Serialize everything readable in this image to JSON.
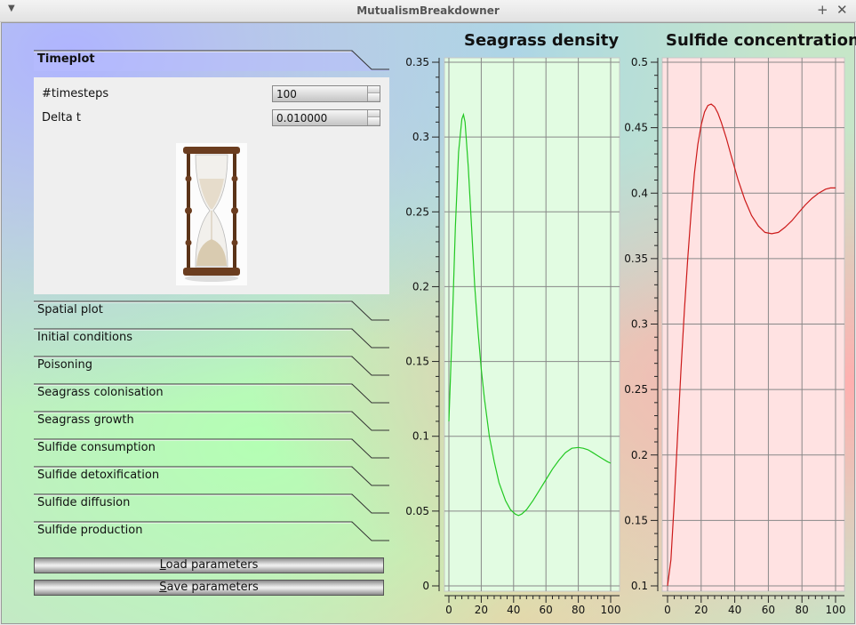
{
  "window": {
    "title": "MutualismBreakdowner"
  },
  "toolbox": {
    "active": {
      "label": "Timeplot"
    },
    "timeplot": {
      "timesteps_label": "#timesteps",
      "timesteps_value": "100",
      "delta_label": "Delta t",
      "delta_value": "0.010000",
      "image": "hourglass-image"
    },
    "sections": [
      {
        "label": "Spatial plot"
      },
      {
        "label": "Initial conditions"
      },
      {
        "label": "Poisoning"
      },
      {
        "label": "Seagrass colonisation"
      },
      {
        "label": "Seagrass growth"
      },
      {
        "label": "Sulfide consumption"
      },
      {
        "label": "Sulfide detoxification"
      },
      {
        "label": "Sulfide diffusion"
      },
      {
        "label": "Sulfide production"
      }
    ]
  },
  "buttons": {
    "load": {
      "underline": "L",
      "rest": "oad parameters"
    },
    "save": {
      "underline": "S",
      "rest": "ave parameters"
    }
  },
  "chart_data": [
    {
      "type": "line",
      "title": "Seagrass density",
      "xlim": [
        0,
        100
      ],
      "ylim": [
        0,
        0.35
      ],
      "xticks": [
        "0",
        "20",
        "40",
        "60",
        "80",
        "100"
      ],
      "yticks": [
        "0",
        "0.05",
        "0.1",
        "0.15",
        "0.2",
        "0.25",
        "0.3",
        "0.35"
      ],
      "grid": true,
      "background": "#e2fce2",
      "series": [
        {
          "color": "#22c822",
          "x": [
            0,
            2,
            4,
            6,
            8,
            9,
            10,
            12,
            14,
            16,
            18,
            20,
            22,
            25,
            28,
            31,
            35,
            38,
            41,
            43,
            45,
            48,
            52,
            56,
            60,
            64,
            68,
            72,
            76,
            80,
            83,
            86,
            89,
            92,
            95,
            98,
            100
          ],
          "y": [
            0.11,
            0.17,
            0.24,
            0.29,
            0.312,
            0.315,
            0.31,
            0.28,
            0.24,
            0.2,
            0.17,
            0.145,
            0.125,
            0.1,
            0.083,
            0.069,
            0.057,
            0.051,
            0.048,
            0.047,
            0.048,
            0.051,
            0.057,
            0.064,
            0.071,
            0.078,
            0.084,
            0.089,
            0.092,
            0.0925,
            0.092,
            0.091,
            0.089,
            0.087,
            0.085,
            0.083,
            0.082
          ]
        }
      ]
    },
    {
      "type": "line",
      "title": "Sulfide concentration",
      "xlim": [
        0,
        100
      ],
      "ylim": [
        0.1,
        0.5
      ],
      "xticks": [
        "0",
        "20",
        "40",
        "60",
        "80",
        "100"
      ],
      "yticks": [
        "0.1",
        "0.15",
        "0.2",
        "0.25",
        "0.3",
        "0.35",
        "0.4",
        "0.45",
        "0.5"
      ],
      "grid": true,
      "background": "#ffe2e2",
      "series": [
        {
          "color": "#cc1a1a",
          "x": [
            0,
            2,
            4,
            6,
            8,
            10,
            12,
            14,
            16,
            18,
            20,
            22,
            24,
            26,
            28,
            30,
            32,
            35,
            38,
            42,
            46,
            50,
            54,
            58,
            62,
            66,
            70,
            74,
            78,
            82,
            86,
            90,
            94,
            97,
            100
          ],
          "y": [
            0.1,
            0.12,
            0.165,
            0.215,
            0.265,
            0.31,
            0.35,
            0.385,
            0.415,
            0.437,
            0.452,
            0.462,
            0.467,
            0.468,
            0.466,
            0.461,
            0.454,
            0.442,
            0.428,
            0.41,
            0.395,
            0.383,
            0.375,
            0.37,
            0.369,
            0.37,
            0.374,
            0.379,
            0.385,
            0.391,
            0.396,
            0.4,
            0.403,
            0.404,
            0.404
          ]
        }
      ]
    }
  ]
}
